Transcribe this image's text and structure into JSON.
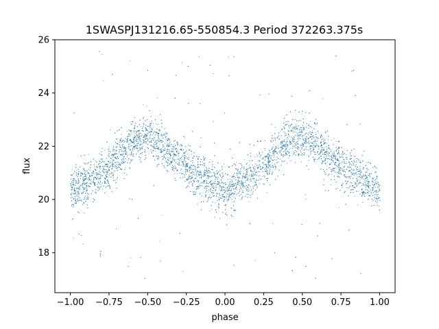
{
  "chart_data": {
    "type": "scatter",
    "title": "1SWASPJ131216.65-550854.3 Period 372263.375s",
    "xlabel": "phase",
    "ylabel": "flux",
    "xlim": [
      -1.1,
      1.1
    ],
    "ylim": [
      16.5,
      26.0
    ],
    "xticks": [
      -1.0,
      -0.75,
      -0.5,
      -0.25,
      0.0,
      0.25,
      0.5,
      0.75,
      1.0
    ],
    "xtick_labels": [
      "−1.00",
      "−0.75",
      "−0.50",
      "−0.25",
      "0.00",
      "0.25",
      "0.50",
      "0.75",
      "1.00"
    ],
    "yticks": [
      18,
      20,
      22,
      24,
      26
    ],
    "ytick_labels": [
      "18",
      "20",
      "22",
      "24",
      "26"
    ],
    "grid": false,
    "point_color": "#1f77b4",
    "series": [
      {
        "phase_range": [
          -1.0,
          1.0
        ],
        "profile_phase": [
          0.0,
          0.1,
          0.2,
          0.3,
          0.4,
          0.5,
          0.6,
          0.7,
          0.8,
          0.9,
          1.0
        ],
        "profile_flux": [
          20.3,
          20.6,
          21.0,
          21.6,
          22.2,
          22.4,
          22.0,
          21.5,
          21.0,
          20.7,
          20.3
        ],
        "scatter_sigma": 0.55,
        "outlier_range": [
          16.9,
          25.6
        ],
        "n_points": 9000
      }
    ]
  }
}
